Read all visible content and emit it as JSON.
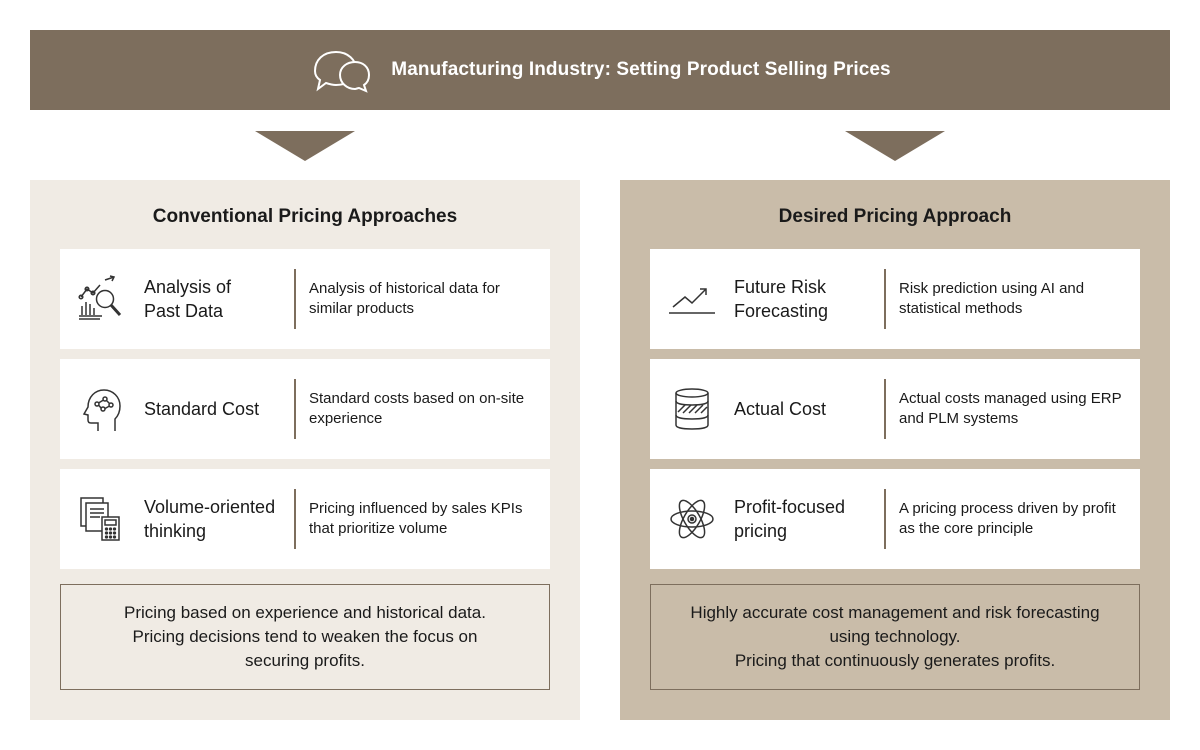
{
  "header": {
    "title": "Manufacturing Industry: Setting Product Selling Prices",
    "icon": "chat-bubbles-icon",
    "background": "#7d6e5d"
  },
  "left_panel": {
    "title": "Conventional Pricing Approaches",
    "background": "#f0ebe4",
    "items": [
      {
        "icon": "data-analysis-icon",
        "name": "Analysis of\nPast Data",
        "description": "Analysis of historical data for similar products"
      },
      {
        "icon": "head-network-icon",
        "name": "Standard Cost",
        "description": "Standard costs based on on-site experience"
      },
      {
        "icon": "documents-calculator-icon",
        "name": "Volume-oriented\nthinking",
        "description": "Pricing influenced by sales KPIs that prioritize volume"
      }
    ],
    "summary": "Pricing based on experience and historical data.\nPricing decisions tend to weaken the focus on\nsecuring profits."
  },
  "right_panel": {
    "title": "Desired Pricing Approach",
    "background": "#c9bca9",
    "items": [
      {
        "icon": "trend-line-icon",
        "name": "Future Risk\nForecasting",
        "description": "Risk prediction using AI and statistical methods"
      },
      {
        "icon": "database-icon",
        "name": "Actual Cost",
        "description": "Actual costs managed using ERP and PLM systems"
      },
      {
        "icon": "atom-icon",
        "name": "Profit-focused\npricing",
        "description": "A pricing process driven by profit as the core principle"
      }
    ],
    "summary": "Highly accurate cost management and risk forecasting\nusing technology.\nPricing that continuously generates profits."
  }
}
